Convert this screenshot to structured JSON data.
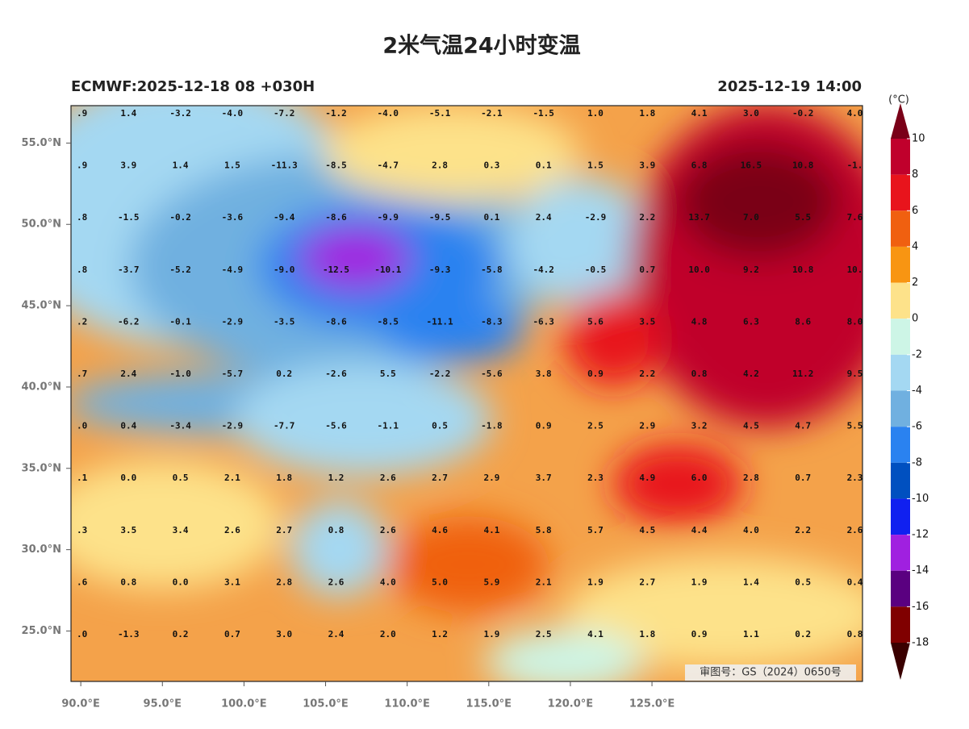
{
  "title": "2米气温24小时变温",
  "subtitle_left": "ECMWF:2025-12-18 08 +030H",
  "subtitle_right": "2025-12-19 14:00",
  "map": {
    "xlim": [
      89.4,
      137.9
    ],
    "ylim": [
      21.9,
      57.3
    ],
    "xticks": [
      {
        "value": 90,
        "label": "90.0°E"
      },
      {
        "value": 95,
        "label": "95.0°E"
      },
      {
        "value": 100,
        "label": "100.0°E"
      },
      {
        "value": 105,
        "label": "105.0°E"
      },
      {
        "value": 110,
        "label": "110.0°E"
      },
      {
        "value": 115,
        "label": "115.0°E"
      },
      {
        "value": 120,
        "label": "120.0°E"
      },
      {
        "value": 125,
        "label": "125.0°E"
      }
    ],
    "yticks": [
      {
        "value": 25,
        "label": "25.0°N"
      },
      {
        "value": 30,
        "label": "30.0°N"
      },
      {
        "value": 35,
        "label": "35.0°N"
      },
      {
        "value": 40,
        "label": "40.0°N"
      },
      {
        "value": 45,
        "label": "45.0°N"
      },
      {
        "value": 50,
        "label": "50.0°N"
      },
      {
        "value": 55,
        "label": "55.0°N"
      }
    ]
  },
  "grid": {
    "rows": [
      [
        ".9",
        "1.4",
        "-3.2",
        "-4.0",
        "-7.2",
        "-1.2",
        "-4.0",
        "-5.1",
        "-2.1",
        "-1.5",
        "1.0",
        "1.8",
        "4.1",
        "3.0",
        "-0.2",
        "4.0"
      ],
      [
        ".9",
        "3.9",
        "1.4",
        "1.5",
        "-11.3",
        "-8.5",
        "-4.7",
        "2.8",
        "0.3",
        "0.1",
        "1.5",
        "3.9",
        "6.8",
        "16.5",
        "10.8",
        "-1."
      ],
      [
        ".8",
        "-1.5",
        "-0.2",
        "-3.6",
        "-9.4",
        "-8.6",
        "-9.9",
        "-9.5",
        "0.1",
        "2.4",
        "-2.9",
        "2.2",
        "13.7",
        "7.0",
        "5.5",
        "7.6"
      ],
      [
        ".8",
        "-3.7",
        "-5.2",
        "-4.9",
        "-9.0",
        "-12.5",
        "-10.1",
        "-9.3",
        "-5.8",
        "-4.2",
        "-0.5",
        "0.7",
        "10.0",
        "9.2",
        "10.8",
        "10."
      ],
      [
        ".2",
        "-6.2",
        "-0.1",
        "-2.9",
        "-3.5",
        "-8.6",
        "-8.5",
        "-11.1",
        "-8.3",
        "-6.3",
        "5.6",
        "3.5",
        "4.8",
        "6.3",
        "8.6",
        "8.0"
      ],
      [
        ".7",
        "2.4",
        "-1.0",
        "-5.7",
        "0.2",
        "-2.6",
        "5.5",
        "-2.2",
        "-5.6",
        "3.8",
        "0.9",
        "2.2",
        "0.8",
        "4.2",
        "11.2",
        "9.5"
      ],
      [
        ".0",
        "0.4",
        "-3.4",
        "-2.9",
        "-7.7",
        "-5.6",
        "-1.1",
        "0.5",
        "-1.8",
        "0.9",
        "2.5",
        "2.9",
        "3.2",
        "4.5",
        "4.7",
        "5.5"
      ],
      [
        ".1",
        "0.0",
        "0.5",
        "2.1",
        "1.8",
        "1.2",
        "2.6",
        "2.7",
        "2.9",
        "3.7",
        "2.3",
        "4.9",
        "6.0",
        "2.8",
        "0.7",
        "2.3"
      ],
      [
        ".3",
        "3.5",
        "3.4",
        "2.6",
        "2.7",
        "0.8",
        "2.6",
        "4.6",
        "4.1",
        "5.8",
        "5.7",
        "4.5",
        "4.4",
        "4.0",
        "2.2",
        "2.6"
      ],
      [
        ".6",
        "0.8",
        "0.0",
        "3.1",
        "2.8",
        "2.6",
        "4.0",
        "5.0",
        "5.9",
        "2.1",
        "1.9",
        "2.7",
        "1.9",
        "1.4",
        "0.5",
        "0.4"
      ],
      [
        ".0",
        "-1.3",
        "0.2",
        "0.7",
        "3.0",
        "2.4",
        "2.0",
        "1.2",
        "1.9",
        "2.5",
        "4.1",
        "1.8",
        "0.9",
        "1.1",
        "0.2",
        "0.8"
      ]
    ]
  },
  "colorbar": {
    "unit": "(°C)",
    "ticks": [
      10,
      8,
      6,
      4,
      2,
      0,
      -2,
      -4,
      -6,
      -8,
      -10,
      -12,
      -14,
      -16,
      -18
    ],
    "colors": [
      "#7a0018",
      "#c0002c",
      "#e8141c",
      "#f06010",
      "#f89512",
      "#fde28a",
      "#cdf5e6",
      "#a4d8f2",
      "#70b0e0",
      "#2a82f0",
      "#0050c0",
      "#1020f0",
      "#a020e0",
      "#5a0080",
      "#800000",
      "#3a0000"
    ]
  },
  "stamp": "审图号：GS（2024）0650号"
}
